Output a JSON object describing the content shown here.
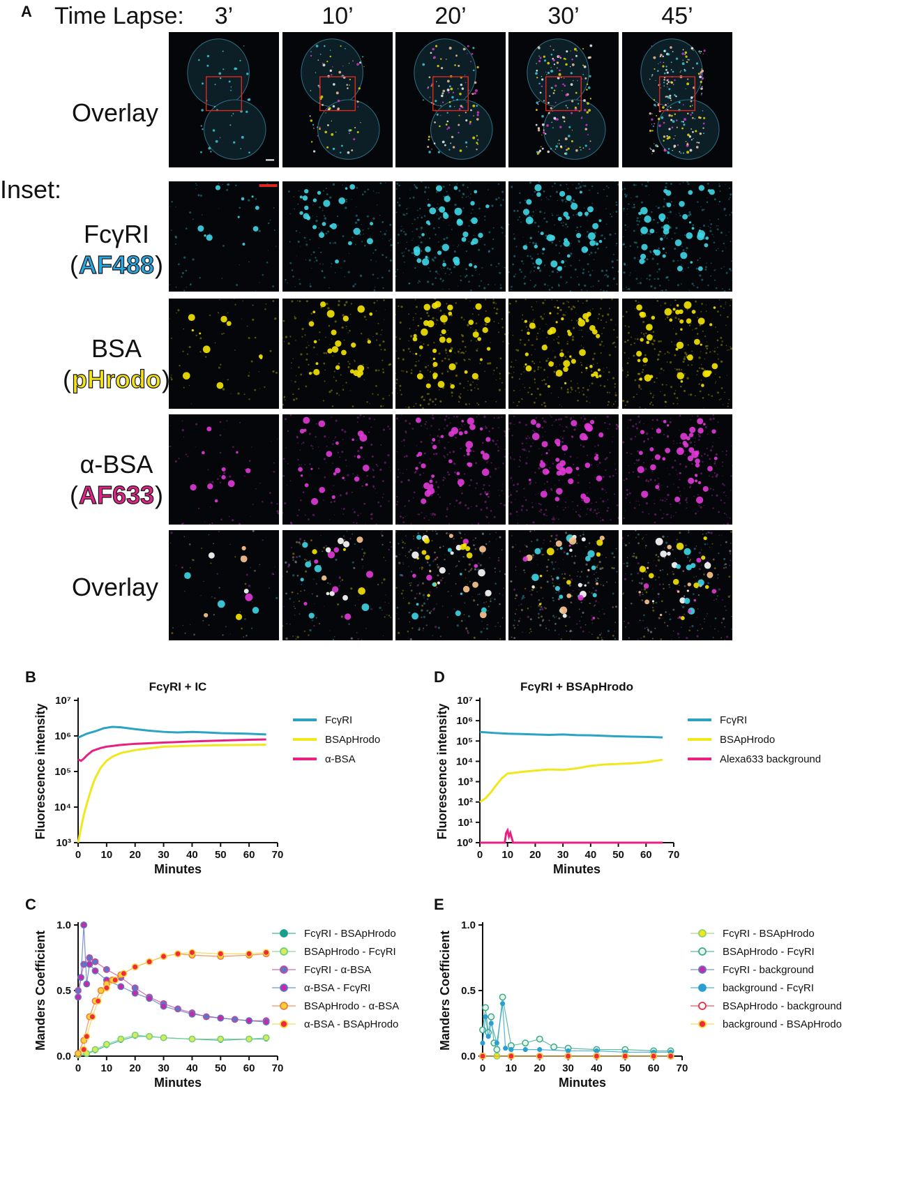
{
  "panel_a": {
    "letter": "A",
    "time_lapse_label": "Time Lapse:",
    "times": [
      "3’",
      "10’",
      "20’",
      "30’",
      "45’"
    ],
    "row_labels": {
      "overlay": "Overlay",
      "inset": "Inset:",
      "fcgr_line1": "FcγRI",
      "fcgr_paren_open": "(",
      "fcgr_tag": "AF488",
      "fcgr_paren_close": ")",
      "bsa_line1": "BSA",
      "bsa_paren_open": "(",
      "bsa_tag": "pHrodo",
      "bsa_paren_close": ")",
      "abs_line1": "α-BSA",
      "abs_paren_open": "(",
      "abs_tag": "AF633",
      "abs_paren_close": ")",
      "overlay2": "Overlay"
    },
    "colors": {
      "cyan": "#3fd6e6",
      "yellow": "#f5e600",
      "magenta": "#e23ad8",
      "roi_box": "#e0261f",
      "scale_bar_white": "#ffffff",
      "scale_bar_red": "#e0261f",
      "tag_af488": "#2aa7e0",
      "tag_phrodo": "#f2e21a",
      "tag_af633": "#e0248a"
    }
  },
  "chart_data": [
    {
      "panel": "B",
      "type": "line",
      "title": "FcγRI + IC",
      "xlabel": "Minutes",
      "ylabel": "Fluorescence intensity",
      "xlim": [
        0,
        70
      ],
      "ylim": [
        1000,
        10000000
      ],
      "yscale": "log",
      "xticks": [
        "0",
        "10",
        "20",
        "30",
        "40",
        "50",
        "60",
        "70"
      ],
      "yticks": [
        "10³",
        "10⁴",
        "10⁵",
        "10⁶",
        "10⁷"
      ],
      "legend_position": "right",
      "series": [
        {
          "name": "FcγRI",
          "color": "#2ba3c2",
          "x": [
            0,
            3,
            6,
            9,
            12,
            15,
            20,
            25,
            30,
            35,
            40,
            45,
            50,
            55,
            60,
            66
          ],
          "y": [
            900000,
            1150000,
            1350000,
            1650000,
            1800000,
            1750000,
            1550000,
            1400000,
            1300000,
            1250000,
            1300000,
            1250000,
            1200000,
            1180000,
            1150000,
            1100000
          ]
        },
        {
          "name": "BSApHrodo",
          "color": "#f0e81c",
          "x": [
            0,
            1,
            2,
            3,
            4,
            5,
            6,
            8,
            10,
            12,
            15,
            20,
            25,
            30,
            40,
            50,
            60,
            66
          ],
          "y": [
            1000,
            2500,
            6000,
            12000,
            22000,
            40000,
            65000,
            130000,
            200000,
            260000,
            330000,
            400000,
            450000,
            500000,
            530000,
            550000,
            560000,
            570000
          ]
        },
        {
          "name": "α-BSA",
          "color": "#e8207f",
          "x": [
            0,
            1,
            2,
            3,
            5,
            8,
            10,
            15,
            20,
            30,
            40,
            50,
            60,
            66
          ],
          "y": [
            220000,
            200000,
            230000,
            280000,
            380000,
            460000,
            500000,
            560000,
            600000,
            650000,
            700000,
            740000,
            780000,
            800000
          ]
        }
      ]
    },
    {
      "panel": "C",
      "type": "scatter",
      "title": "",
      "xlabel": "Minutes",
      "ylabel": "Manders Coefficient",
      "xlim": [
        0,
        70
      ],
      "ylim": [
        0,
        1
      ],
      "xticks": [
        "0",
        "10",
        "20",
        "30",
        "40",
        "50",
        "60",
        "70"
      ],
      "yticks": [
        "0.0",
        "0.5",
        "1.0"
      ],
      "legend_position": "right",
      "series": [
        {
          "name": "FcγRI - BSApHrodo",
          "color": "#1a9f8f",
          "edge": "#1a9f8f",
          "marker": "dot",
          "x": [
            0,
            3,
            6,
            10,
            15,
            20,
            25,
            30,
            40,
            50,
            60,
            66
          ],
          "y": [
            0.01,
            0.02,
            0.04,
            0.08,
            0.12,
            0.15,
            0.15,
            0.14,
            0.13,
            0.12,
            0.13,
            0.13
          ]
        },
        {
          "name": "BSApHrodo - FcγRI",
          "color": "#d6ea5a",
          "edge": "#6fcf7a",
          "marker": "circle",
          "x": [
            0,
            3,
            6,
            10,
            15,
            20,
            25,
            30,
            40,
            50,
            60,
            66
          ],
          "y": [
            0.01,
            0.02,
            0.05,
            0.09,
            0.13,
            0.16,
            0.15,
            0.14,
            0.13,
            0.13,
            0.13,
            0.14
          ]
        },
        {
          "name": "FcγRI - α-BSA",
          "color": "#5a76c8",
          "edge": "#c44a9a",
          "marker": "circle",
          "x": [
            0,
            2,
            4,
            6,
            10,
            15,
            20,
            25,
            30,
            35,
            40,
            45,
            50,
            55,
            60,
            66
          ],
          "y": [
            0.5,
            0.7,
            0.75,
            0.72,
            0.66,
            0.6,
            0.52,
            0.45,
            0.4,
            0.36,
            0.33,
            0.3,
            0.29,
            0.28,
            0.27,
            0.27
          ]
        },
        {
          "name": "α-BSA - FcγRI",
          "color": "#c62aa5",
          "edge": "#5a76c8",
          "marker": "circle",
          "x": [
            0,
            1,
            2,
            3,
            4,
            6,
            10,
            15,
            20,
            25,
            30,
            40,
            50,
            60,
            66
          ],
          "y": [
            0.45,
            0.6,
            1.0,
            0.55,
            0.7,
            0.65,
            0.58,
            0.53,
            0.48,
            0.44,
            0.38,
            0.32,
            0.29,
            0.27,
            0.26
          ]
        },
        {
          "name": "BSApHrodo - α-BSA",
          "color": "#f5d23a",
          "edge": "#f07a3a",
          "marker": "circle",
          "x": [
            0,
            2,
            4,
            6,
            8,
            10,
            12,
            15,
            20,
            25,
            30,
            35,
            40,
            50,
            60,
            66
          ],
          "y": [
            0.02,
            0.12,
            0.3,
            0.42,
            0.5,
            0.55,
            0.58,
            0.62,
            0.68,
            0.72,
            0.76,
            0.78,
            0.77,
            0.76,
            0.77,
            0.78
          ]
        },
        {
          "name": "α-BSA - BSApHrodo",
          "color": "#f02a3a",
          "edge": "#f5d23a",
          "marker": "circle",
          "x": [
            2,
            3,
            5,
            7,
            10,
            13,
            16,
            20,
            25,
            30,
            35,
            40,
            50,
            60,
            66
          ],
          "y": [
            0.05,
            0.15,
            0.3,
            0.42,
            0.52,
            0.58,
            0.63,
            0.68,
            0.72,
            0.76,
            0.78,
            0.79,
            0.78,
            0.78,
            0.79
          ]
        }
      ]
    },
    {
      "panel": "D",
      "type": "line",
      "title": "FcγRI + BSApHrodo",
      "xlabel": "Minutes",
      "ylabel": "Fluorescence intensity",
      "xlim": [
        0,
        70
      ],
      "ylim": [
        1,
        10000000
      ],
      "yscale": "log",
      "xticks": [
        "0",
        "10",
        "20",
        "30",
        "40",
        "50",
        "60",
        "70"
      ],
      "yticks": [
        "10⁰",
        "10¹",
        "10²",
        "10³",
        "10⁴",
        "10⁵",
        "10⁶",
        "10⁷"
      ],
      "legend_position": "right",
      "series": [
        {
          "name": "FcγRI",
          "color": "#2ba3c2",
          "x": [
            0,
            5,
            10,
            15,
            20,
            25,
            30,
            35,
            40,
            45,
            50,
            55,
            60,
            66
          ],
          "y": [
            280000,
            250000,
            230000,
            220000,
            210000,
            200000,
            210000,
            195000,
            190000,
            180000,
            170000,
            165000,
            160000,
            150000
          ]
        },
        {
          "name": "BSApHrodo",
          "color": "#f0e81c",
          "x": [
            0,
            2,
            4,
            6,
            8,
            10,
            15,
            20,
            25,
            30,
            35,
            40,
            45,
            50,
            55,
            60,
            66
          ],
          "y": [
            100,
            150,
            300,
            700,
            1500,
            2500,
            3000,
            3500,
            4000,
            3800,
            4500,
            6000,
            7000,
            7500,
            8000,
            9000,
            12000
          ]
        },
        {
          "name": "Alexa633 background",
          "color": "#e8207f",
          "x": [
            0,
            9,
            9.5,
            10,
            10.5,
            11,
            12,
            20,
            30,
            40,
            50,
            60,
            66
          ],
          "y": [
            1,
            1,
            3,
            4,
            2,
            3,
            1,
            1,
            1,
            1,
            1,
            1,
            1
          ]
        }
      ]
    },
    {
      "panel": "E",
      "type": "scatter",
      "title": "",
      "xlabel": "Minutes",
      "ylabel": "Manders Coefficient",
      "xlim": [
        0,
        70
      ],
      "ylim": [
        0,
        1
      ],
      "xticks": [
        "0",
        "10",
        "20",
        "30",
        "40",
        "50",
        "60",
        "70"
      ],
      "yticks": [
        "0.0",
        "0.5",
        "1.0"
      ],
      "legend_position": "right",
      "series": [
        {
          "name": "FcγRI - BSApHrodo",
          "color": "#f0e81c",
          "edge": "#8fcf6a",
          "marker": "circle",
          "x": [
            0,
            5,
            10,
            20,
            30,
            40,
            50,
            60,
            66
          ],
          "y": [
            0.0,
            0.0,
            0.0,
            0.0,
            0.0,
            0.0,
            0.0,
            0.0,
            0.0
          ]
        },
        {
          "name": "BSApHrodo - FcγRI",
          "color": "#e8f3ea",
          "edge": "#3aaa8a",
          "marker": "circle",
          "x": [
            0,
            1,
            2,
            3,
            4,
            5,
            7,
            10,
            15,
            20,
            25,
            30,
            40,
            50,
            60,
            66
          ],
          "y": [
            0.2,
            0.37,
            0.18,
            0.3,
            0.1,
            0.05,
            0.45,
            0.08,
            0.1,
            0.13,
            0.07,
            0.06,
            0.05,
            0.05,
            0.04,
            0.04
          ]
        },
        {
          "name": "FcγRI - background",
          "color": "#c62aa5",
          "edge": "#5a76c8",
          "marker": "circle",
          "x": [
            0,
            10,
            20,
            30,
            40,
            50,
            60,
            66
          ],
          "y": [
            0.0,
            0.0,
            0.0,
            0.0,
            0.0,
            0.0,
            0.0,
            0.0
          ]
        },
        {
          "name": "background - FcγRI",
          "color": "#2a9fd0",
          "edge": "#2a9fd0",
          "marker": "dot",
          "x": [
            0,
            1,
            2,
            3,
            5,
            7,
            8,
            10,
            15,
            20,
            30,
            40,
            50,
            60,
            66
          ],
          "y": [
            0.1,
            0.3,
            0.15,
            0.25,
            0.1,
            0.4,
            0.06,
            0.05,
            0.05,
            0.05,
            0.04,
            0.04,
            0.03,
            0.03,
            0.03
          ]
        },
        {
          "name": "BSApHrodo - background",
          "color": "#ffffff",
          "edge": "#f02a3a",
          "marker": "circle",
          "x": [
            0,
            10,
            20,
            30,
            40,
            50,
            60,
            66
          ],
          "y": [
            0.0,
            0.0,
            0.0,
            0.0,
            0.0,
            0.0,
            0.0,
            0.0
          ]
        },
        {
          "name": "background - BSApHrodo",
          "color": "#f02a3a",
          "edge": "#f5d23a",
          "marker": "circle",
          "x": [
            0,
            10,
            20,
            30,
            40,
            50,
            60,
            66
          ],
          "y": [
            0.0,
            0.0,
            0.0,
            0.0,
            0.0,
            0.0,
            0.0,
            0.0
          ]
        }
      ]
    }
  ]
}
